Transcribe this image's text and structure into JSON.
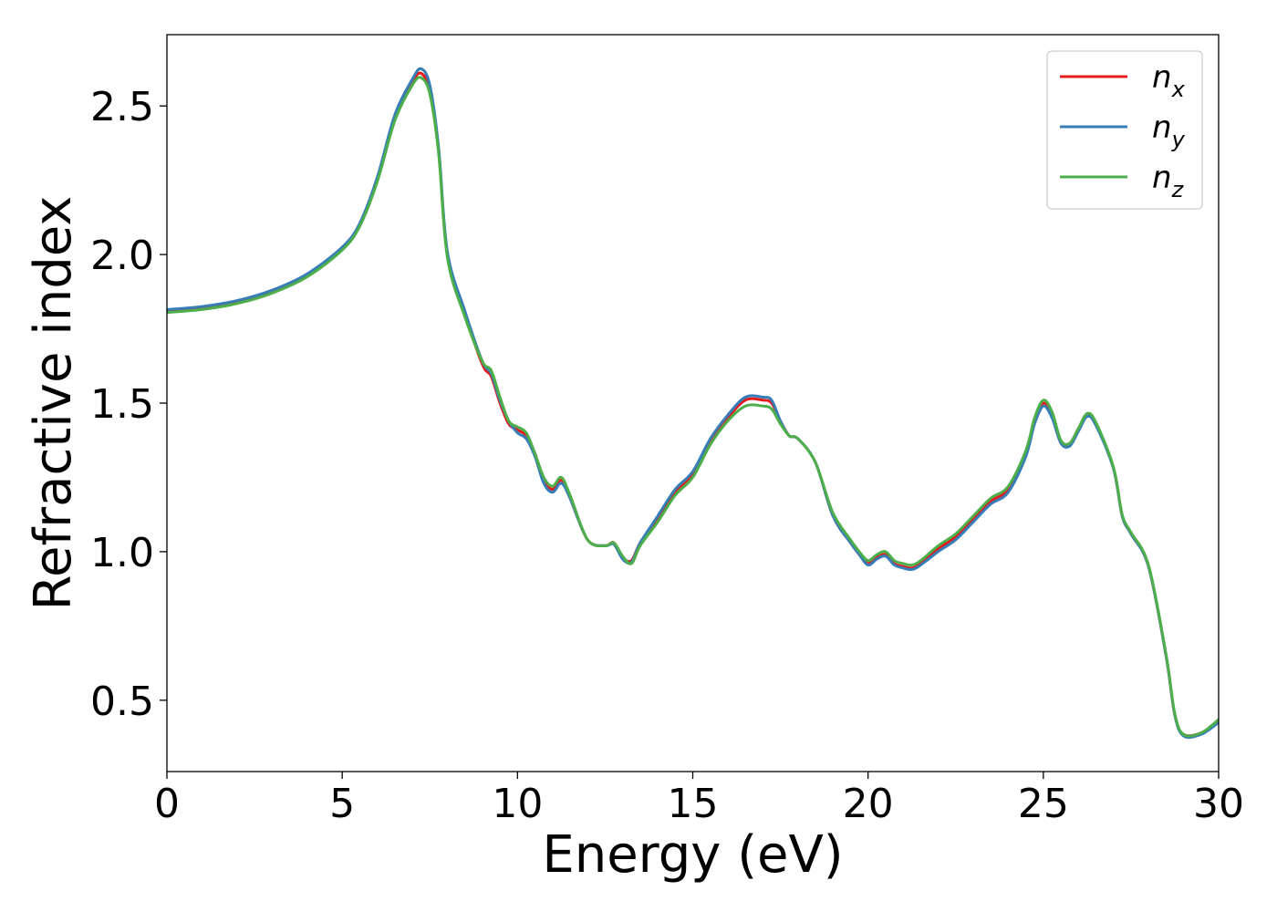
{
  "chart_data": {
    "type": "line",
    "title": "",
    "xlabel": "Energy (eV)",
    "ylabel": "Refractive index",
    "xlim": [
      0,
      30
    ],
    "ylim": [
      0.26,
      2.74
    ],
    "xticks": [
      0,
      5,
      10,
      15,
      20,
      25,
      30
    ],
    "xtick_labels": [
      "0",
      "5",
      "10",
      "15",
      "20",
      "25",
      "30"
    ],
    "yticks": [
      0.5,
      1.0,
      1.5,
      2.0,
      2.5
    ],
    "ytick_labels": [
      "0.5",
      "1.0",
      "1.5",
      "2.0",
      "2.5"
    ],
    "grid": false,
    "legend_position": "top-right",
    "x": [
      0,
      1,
      2,
      3,
      4,
      5,
      5.5,
      6,
      6.5,
      7,
      7.25,
      7.5,
      7.75,
      8,
      8.5,
      9,
      9.25,
      9.5,
      9.75,
      10,
      10.25,
      10.5,
      10.75,
      11,
      11.25,
      11.5,
      12,
      12.5,
      12.75,
      13,
      13.25,
      13.5,
      14,
      14.5,
      15,
      15.5,
      16,
      16.5,
      17,
      17.25,
      17.5,
      17.75,
      18,
      18.5,
      19,
      19.5,
      19.75,
      20,
      20.25,
      20.5,
      20.75,
      21,
      21.25,
      21.5,
      22,
      22.5,
      23,
      23.5,
      24,
      24.5,
      24.75,
      25,
      25.25,
      25.5,
      25.75,
      26,
      26.25,
      26.5,
      27,
      27.25,
      27.5,
      28,
      28.5,
      28.75,
      29,
      29.5,
      30
    ],
    "series": [
      {
        "name": "n_x",
        "label_main": "n",
        "label_sub": "x",
        "color": "#e41a1c",
        "values": [
          1.81,
          1.82,
          1.84,
          1.875,
          1.93,
          2.02,
          2.1,
          2.25,
          2.46,
          2.58,
          2.61,
          2.55,
          2.35,
          2.0,
          1.8,
          1.63,
          1.59,
          1.5,
          1.43,
          1.41,
          1.39,
          1.33,
          1.24,
          1.21,
          1.24,
          1.18,
          1.04,
          1.02,
          1.03,
          0.98,
          0.97,
          1.03,
          1.11,
          1.2,
          1.26,
          1.37,
          1.45,
          1.51,
          1.51,
          1.5,
          1.44,
          1.39,
          1.38,
          1.3,
          1.12,
          1.03,
          0.99,
          0.96,
          0.98,
          0.99,
          0.96,
          0.95,
          0.945,
          0.96,
          1.01,
          1.05,
          1.11,
          1.17,
          1.21,
          1.33,
          1.44,
          1.5,
          1.46,
          1.37,
          1.36,
          1.41,
          1.46,
          1.43,
          1.28,
          1.12,
          1.06,
          0.95,
          0.65,
          0.45,
          0.385,
          0.39,
          0.43
        ]
      },
      {
        "name": "n_y",
        "label_main": "n",
        "label_sub": "y",
        "color": "#377eb8",
        "values": [
          1.815,
          1.825,
          1.845,
          1.88,
          1.935,
          2.025,
          2.105,
          2.26,
          2.47,
          2.59,
          2.625,
          2.57,
          2.36,
          2.01,
          1.81,
          1.64,
          1.6,
          1.51,
          1.44,
          1.4,
          1.38,
          1.32,
          1.23,
          1.2,
          1.23,
          1.18,
          1.04,
          1.02,
          1.025,
          0.975,
          0.965,
          1.03,
          1.12,
          1.21,
          1.27,
          1.38,
          1.46,
          1.52,
          1.52,
          1.51,
          1.44,
          1.39,
          1.38,
          1.3,
          1.12,
          1.03,
          0.99,
          0.955,
          0.975,
          0.985,
          0.955,
          0.945,
          0.94,
          0.955,
          1.0,
          1.04,
          1.1,
          1.16,
          1.2,
          1.32,
          1.43,
          1.49,
          1.45,
          1.365,
          1.355,
          1.405,
          1.455,
          1.425,
          1.28,
          1.12,
          1.06,
          0.95,
          0.65,
          0.45,
          0.38,
          0.385,
          0.425
        ]
      },
      {
        "name": "n_z",
        "label_main": "n",
        "label_sub": "z",
        "color": "#4daf4a",
        "values": [
          1.805,
          1.815,
          1.835,
          1.87,
          1.925,
          2.015,
          2.095,
          2.245,
          2.45,
          2.57,
          2.595,
          2.54,
          2.34,
          1.99,
          1.79,
          1.64,
          1.61,
          1.52,
          1.44,
          1.42,
          1.4,
          1.33,
          1.25,
          1.22,
          1.25,
          1.19,
          1.04,
          1.02,
          1.03,
          0.985,
          0.96,
          1.02,
          1.1,
          1.19,
          1.25,
          1.36,
          1.44,
          1.49,
          1.49,
          1.48,
          1.43,
          1.39,
          1.38,
          1.3,
          1.13,
          1.04,
          1.0,
          0.97,
          0.99,
          1.0,
          0.97,
          0.96,
          0.955,
          0.97,
          1.02,
          1.06,
          1.12,
          1.18,
          1.22,
          1.34,
          1.45,
          1.51,
          1.47,
          1.375,
          1.365,
          1.415,
          1.465,
          1.435,
          1.285,
          1.125,
          1.065,
          0.955,
          0.655,
          0.455,
          0.385,
          0.39,
          0.435
        ]
      }
    ]
  }
}
